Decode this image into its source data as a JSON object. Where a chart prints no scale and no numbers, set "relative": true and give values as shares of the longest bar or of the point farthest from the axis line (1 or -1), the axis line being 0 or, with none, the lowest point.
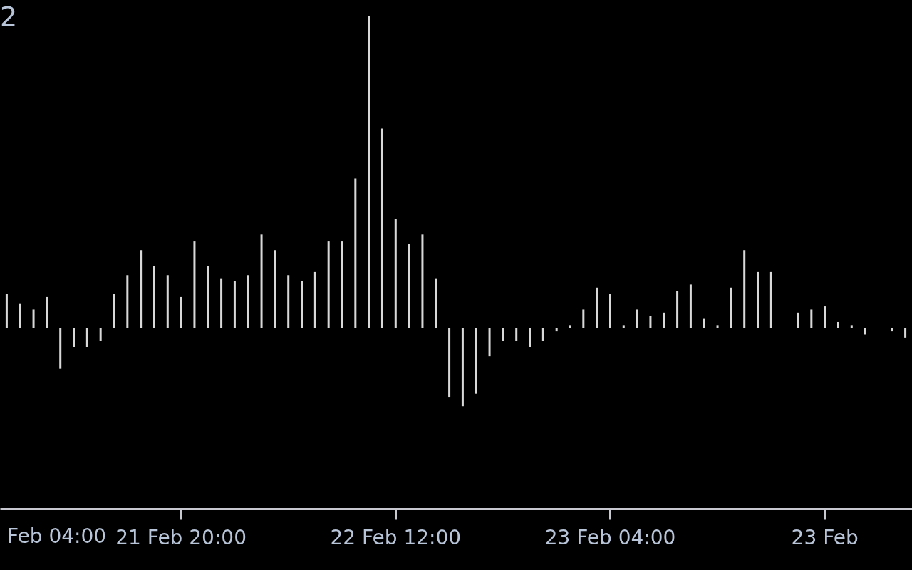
{
  "chart_data": {
    "type": "bar",
    "relative": true,
    "color": "#d9d9d9",
    "categories": [
      null,
      null,
      null,
      null,
      null,
      null,
      null,
      null,
      null,
      null,
      null,
      null,
      null,
      "21 Feb 20:00",
      null,
      null,
      null,
      null,
      null,
      null,
      null,
      null,
      null,
      null,
      null,
      null,
      null,
      null,
      null,
      "22 Feb 12:00",
      null,
      null,
      null,
      null,
      null,
      null,
      null,
      null,
      null,
      null,
      null,
      null,
      null,
      null,
      null,
      "23 Feb 04:00",
      null,
      null,
      null,
      null,
      null,
      null,
      null,
      null,
      null,
      null,
      null,
      null,
      null,
      null,
      null,
      "23 Feb",
      null,
      null,
      null,
      null,
      null,
      null
    ],
    "values": [
      0.11,
      0.08,
      0.06,
      0.1,
      -0.13,
      -0.06,
      -0.06,
      -0.04,
      0.11,
      0.17,
      0.25,
      0.2,
      0.17,
      0.1,
      0.28,
      0.2,
      0.16,
      0.15,
      0.17,
      0.3,
      0.25,
      0.17,
      0.15,
      0.18,
      0.28,
      0.28,
      0.48,
      1,
      0.64,
      0.35,
      0.27,
      0.3,
      0.16,
      -0.22,
      -0.25,
      -0.21,
      -0.09,
      -0.04,
      -0.04,
      -0.06,
      -0.04,
      -0.01,
      0.01,
      0.06,
      0.13,
      0.11,
      0.01,
      0.06,
      0.04,
      0.05,
      0.12,
      0.14,
      0.03,
      0.01,
      0.13,
      0.25,
      0.18,
      0.18,
      null,
      0.05,
      0.06,
      0.07,
      0.02,
      0.01,
      -0.02,
      null,
      -0.01,
      -0.03
    ],
    "annotations": [
      "2",
      "Feb 04:00"
    ]
  }
}
